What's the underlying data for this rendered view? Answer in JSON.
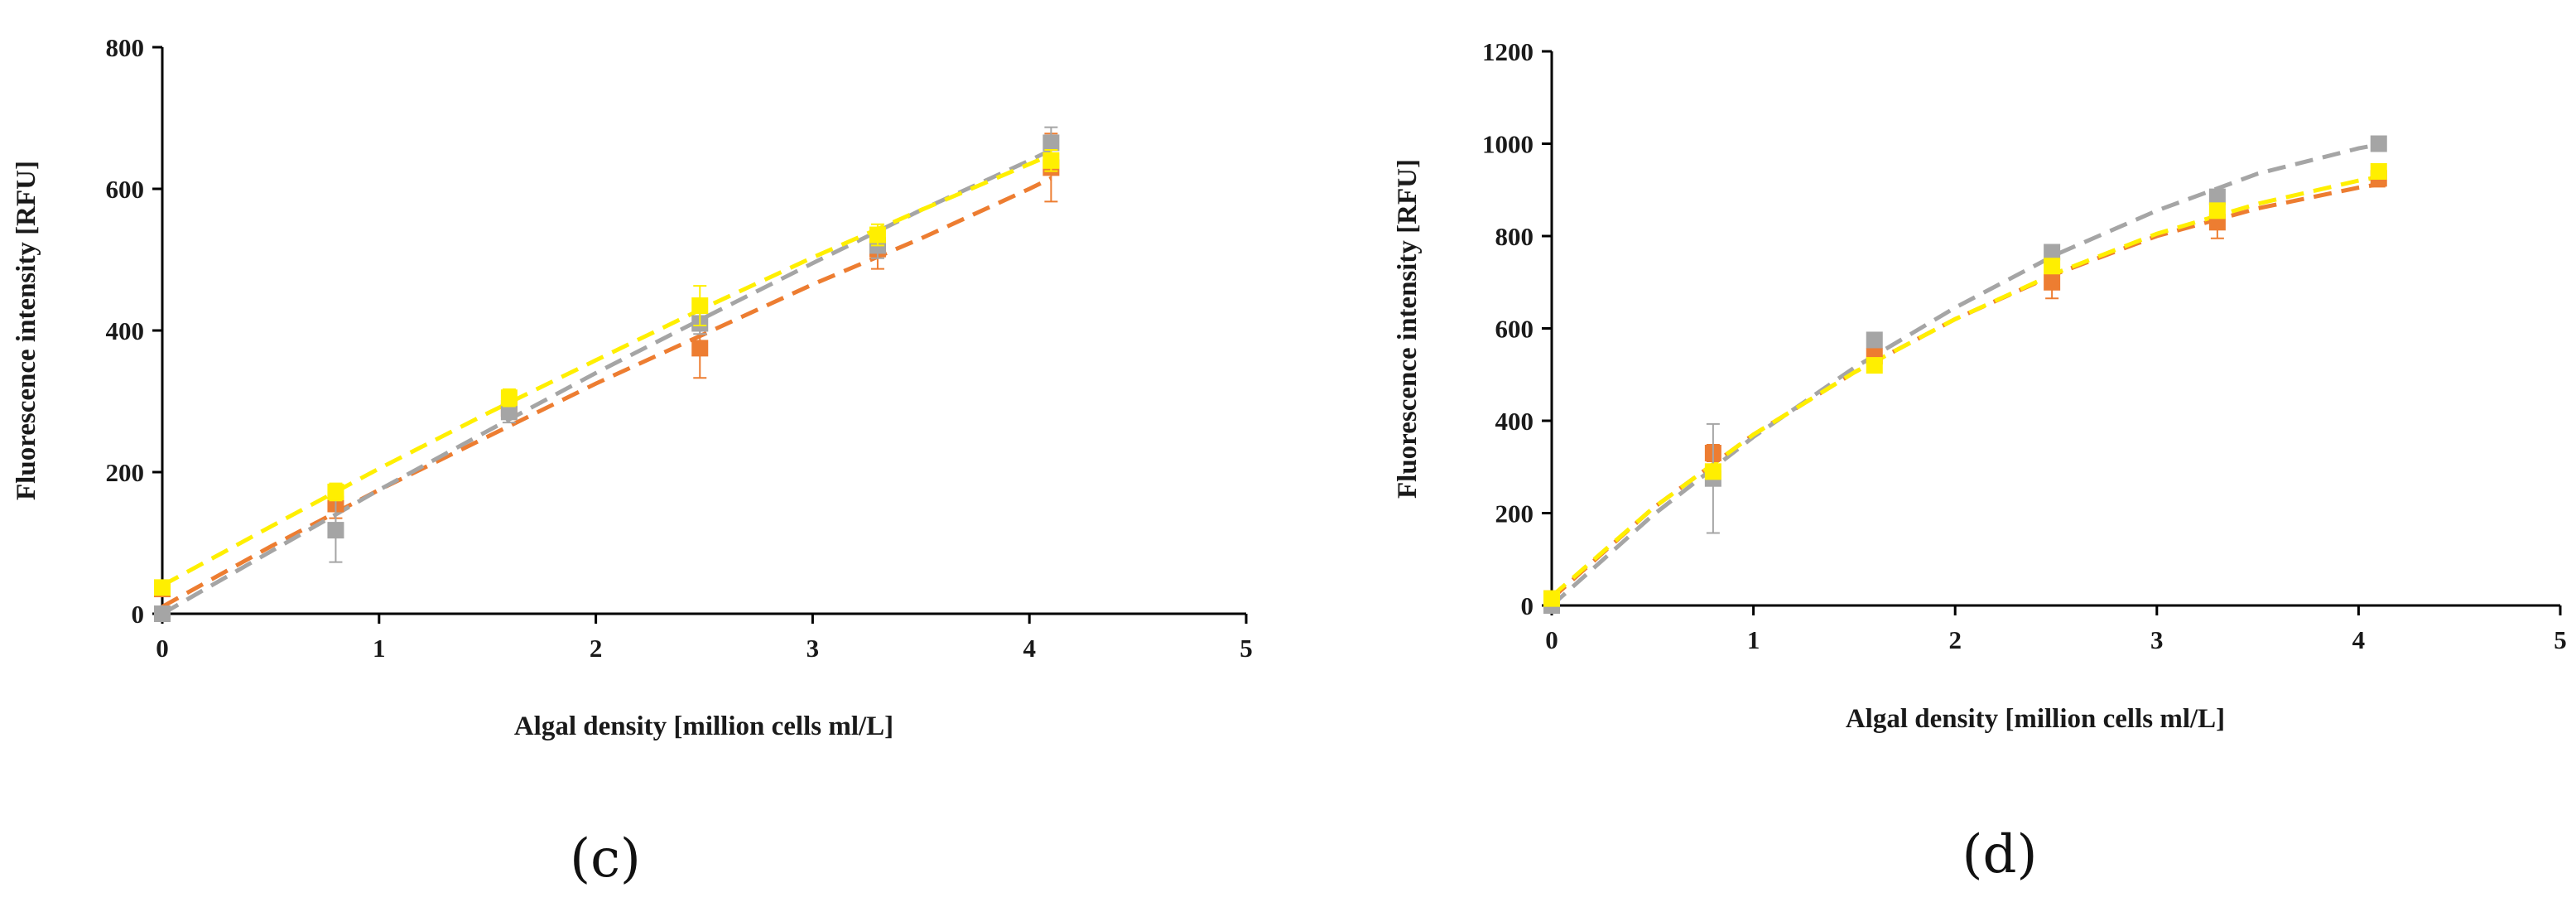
{
  "colors": {
    "orange": "#ED7D31",
    "gray": "#A5A5A5",
    "yellow": "#FFEF00",
    "axis": "#000000"
  },
  "chart_data": [
    {
      "type": "scatter",
      "panel_label": "(c)",
      "xlabel": "Algal density [million cells ml/L]",
      "ylabel": "Fluorescence intensity [RFU]",
      "xlim": [
        0,
        5
      ],
      "ylim": [
        0,
        800
      ],
      "xticks": [
        0,
        1,
        2,
        3,
        4,
        5
      ],
      "yticks": [
        0,
        200,
        400,
        600,
        800
      ],
      "grid": false,
      "series": [
        {
          "name": "orange",
          "color": "#ED7D31",
          "x": [
            0,
            0.8,
            1.6,
            2.48,
            3.3,
            4.1
          ],
          "y": [
            35,
            155,
            290,
            375,
            515,
            630
          ],
          "err": [
            0,
            20,
            15,
            42,
            28,
            48
          ],
          "trend": [
            [
              0,
              10
            ],
            [
              0.5,
              95
            ],
            [
              1,
              175
            ],
            [
              1.5,
              250
            ],
            [
              2,
              325
            ],
            [
              2.5,
              395
            ],
            [
              3,
              465
            ],
            [
              3.5,
              530
            ],
            [
              4,
              600
            ],
            [
              4.1,
              615
            ]
          ]
        },
        {
          "name": "gray",
          "color": "#A5A5A5",
          "x": [
            0,
            0.8,
            1.6,
            2.48,
            3.3,
            4.1
          ],
          "y": [
            0,
            118,
            285,
            410,
            520,
            665
          ],
          "err": [
            0,
            45,
            15,
            15,
            18,
            22
          ],
          "trend": [
            [
              0,
              0
            ],
            [
              0.5,
              88
            ],
            [
              1,
              175
            ],
            [
              1.5,
              258
            ],
            [
              2,
              340
            ],
            [
              2.5,
              418
            ],
            [
              3,
              495
            ],
            [
              3.5,
              570
            ],
            [
              4,
              640
            ],
            [
              4.1,
              655
            ]
          ]
        },
        {
          "name": "yellow",
          "color": "#FFEF00",
          "x": [
            0,
            0.8,
            1.6,
            2.48,
            3.3,
            4.1
          ],
          "y": [
            37,
            172,
            305,
            435,
            535,
            640
          ],
          "err": [
            0,
            12,
            12,
            28,
            15,
            15
          ],
          "trend": [
            [
              0,
              40
            ],
            [
              0.5,
              123
            ],
            [
              1,
              205
            ],
            [
              1.5,
              283
            ],
            [
              2,
              358
            ],
            [
              2.5,
              432
            ],
            [
              3,
              503
            ],
            [
              3.5,
              570
            ],
            [
              4,
              635
            ],
            [
              4.1,
              648
            ]
          ]
        }
      ]
    },
    {
      "type": "scatter",
      "panel_label": "(d)",
      "xlabel": "Algal density [million cells ml/L]",
      "ylabel": "Fluorescence intensity [RFU]",
      "xlim": [
        0,
        5
      ],
      "ylim": [
        0,
        1200
      ],
      "xticks": [
        0,
        1,
        2,
        3,
        4,
        5
      ],
      "yticks": [
        0,
        200,
        400,
        600,
        800,
        1000,
        1200
      ],
      "grid": false,
      "series": [
        {
          "name": "orange",
          "color": "#ED7D31",
          "x": [
            0,
            0.8,
            1.6,
            2.48,
            3.3,
            4.1
          ],
          "y": [
            15,
            330,
            540,
            700,
            830,
            925
          ],
          "err": [
            0,
            18,
            15,
            35,
            35,
            18
          ],
          "trend": [
            [
              0,
              15
            ],
            [
              0.5,
              210
            ],
            [
              1,
              370
            ],
            [
              1.5,
              505
            ],
            [
              2,
              620
            ],
            [
              2.5,
              718
            ],
            [
              3,
              800
            ],
            [
              3.5,
              860
            ],
            [
              4,
              905
            ],
            [
              4.1,
              912
            ]
          ]
        },
        {
          "name": "gray",
          "color": "#A5A5A5",
          "x": [
            0,
            0.8,
            1.6,
            2.48,
            3.3,
            4.1
          ],
          "y": [
            0,
            275,
            575,
            765,
            885,
            1000
          ],
          "err": [
            0,
            118,
            15,
            12,
            15,
            12
          ],
          "trend": [
            [
              0,
              0
            ],
            [
              0.5,
              195
            ],
            [
              1,
              365
            ],
            [
              1.5,
              515
            ],
            [
              2,
              645
            ],
            [
              2.5,
              760
            ],
            [
              3,
              855
            ],
            [
              3.5,
              935
            ],
            [
              4,
              990
            ],
            [
              4.1,
              998
            ]
          ]
        },
        {
          "name": "yellow",
          "color": "#FFEF00",
          "x": [
            0,
            0.8,
            1.6,
            2.48,
            3.3,
            4.1
          ],
          "y": [
            15,
            290,
            520,
            735,
            855,
            940
          ],
          "err": [
            0,
            15,
            12,
            15,
            15,
            15
          ],
          "trend": [
            [
              0,
              20
            ],
            [
              0.5,
              210
            ],
            [
              1,
              370
            ],
            [
              1.5,
              505
            ],
            [
              2,
              620
            ],
            [
              2.5,
              720
            ],
            [
              3,
              805
            ],
            [
              3.5,
              870
            ],
            [
              4,
              920
            ],
            [
              4.1,
              928
            ]
          ]
        }
      ]
    }
  ]
}
